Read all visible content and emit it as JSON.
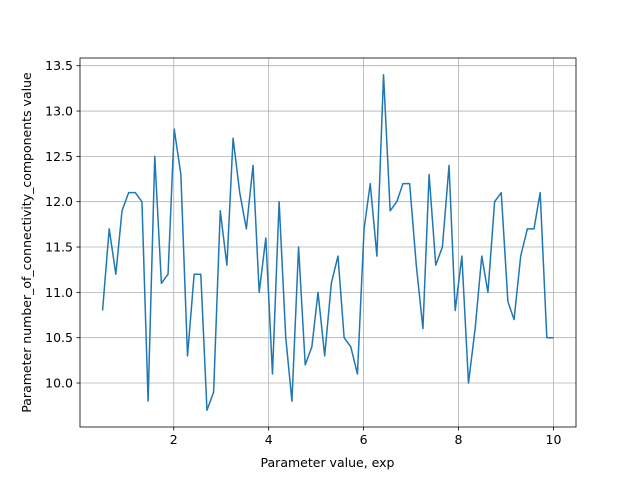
{
  "chart_data": {
    "type": "line",
    "xlabel": "Parameter value, exp",
    "ylabel": "Parameter number_of_connectivity_components value",
    "x": [
      0.5,
      0.64,
      0.78,
      0.91,
      1.05,
      1.19,
      1.33,
      1.46,
      1.6,
      1.74,
      1.88,
      2.01,
      2.15,
      2.29,
      2.43,
      2.57,
      2.7,
      2.84,
      2.98,
      3.12,
      3.25,
      3.39,
      3.53,
      3.67,
      3.8,
      3.94,
      4.08,
      4.22,
      4.36,
      4.49,
      4.63,
      4.77,
      4.91,
      5.04,
      5.18,
      5.32,
      5.46,
      5.59,
      5.73,
      5.87,
      6.01,
      6.14,
      6.28,
      6.42,
      6.56,
      6.7,
      6.83,
      6.97,
      7.11,
      7.25,
      7.38,
      7.52,
      7.66,
      7.8,
      7.93,
      8.07,
      8.21,
      8.35,
      8.49,
      8.62,
      8.76,
      8.9,
      9.04,
      9.17,
      9.31,
      9.45,
      9.59,
      9.72,
      9.86,
      10.0
    ],
    "values": [
      10.8,
      11.7,
      11.2,
      11.9,
      12.1,
      12.1,
      12.0,
      9.8,
      12.5,
      11.1,
      11.2,
      12.8,
      12.3,
      10.3,
      11.2,
      11.2,
      9.7,
      9.9,
      11.9,
      11.3,
      12.7,
      12.1,
      11.7,
      12.4,
      11.0,
      11.6,
      10.1,
      12.0,
      10.5,
      9.8,
      11.5,
      10.2,
      10.4,
      11.0,
      10.3,
      11.1,
      11.4,
      10.5,
      10.4,
      10.1,
      11.7,
      12.2,
      11.4,
      13.4,
      11.9,
      12.0,
      12.2,
      12.2,
      11.3,
      10.6,
      12.3,
      11.3,
      11.5,
      12.4,
      10.8,
      11.4,
      10.0,
      10.6,
      11.4,
      11.0,
      12.0,
      12.1,
      10.9,
      10.7,
      11.4,
      11.7,
      11.7,
      12.1,
      10.5,
      10.5
    ],
    "color": "#1f77b4",
    "xlim": [
      0.025,
      10.475
    ],
    "ylim": [
      9.515,
      13.585
    ],
    "xticks": [
      2,
      4,
      6,
      8,
      10
    ],
    "yticks": [
      {
        "value": 10,
        "label": "10.0"
      },
      10.5,
      {
        "value": 11,
        "label": "11.0"
      },
      11.5,
      {
        "value": 12,
        "label": "12.0"
      },
      12.5,
      {
        "value": 13,
        "label": "13.0"
      },
      13.5
    ],
    "grid": true
  }
}
